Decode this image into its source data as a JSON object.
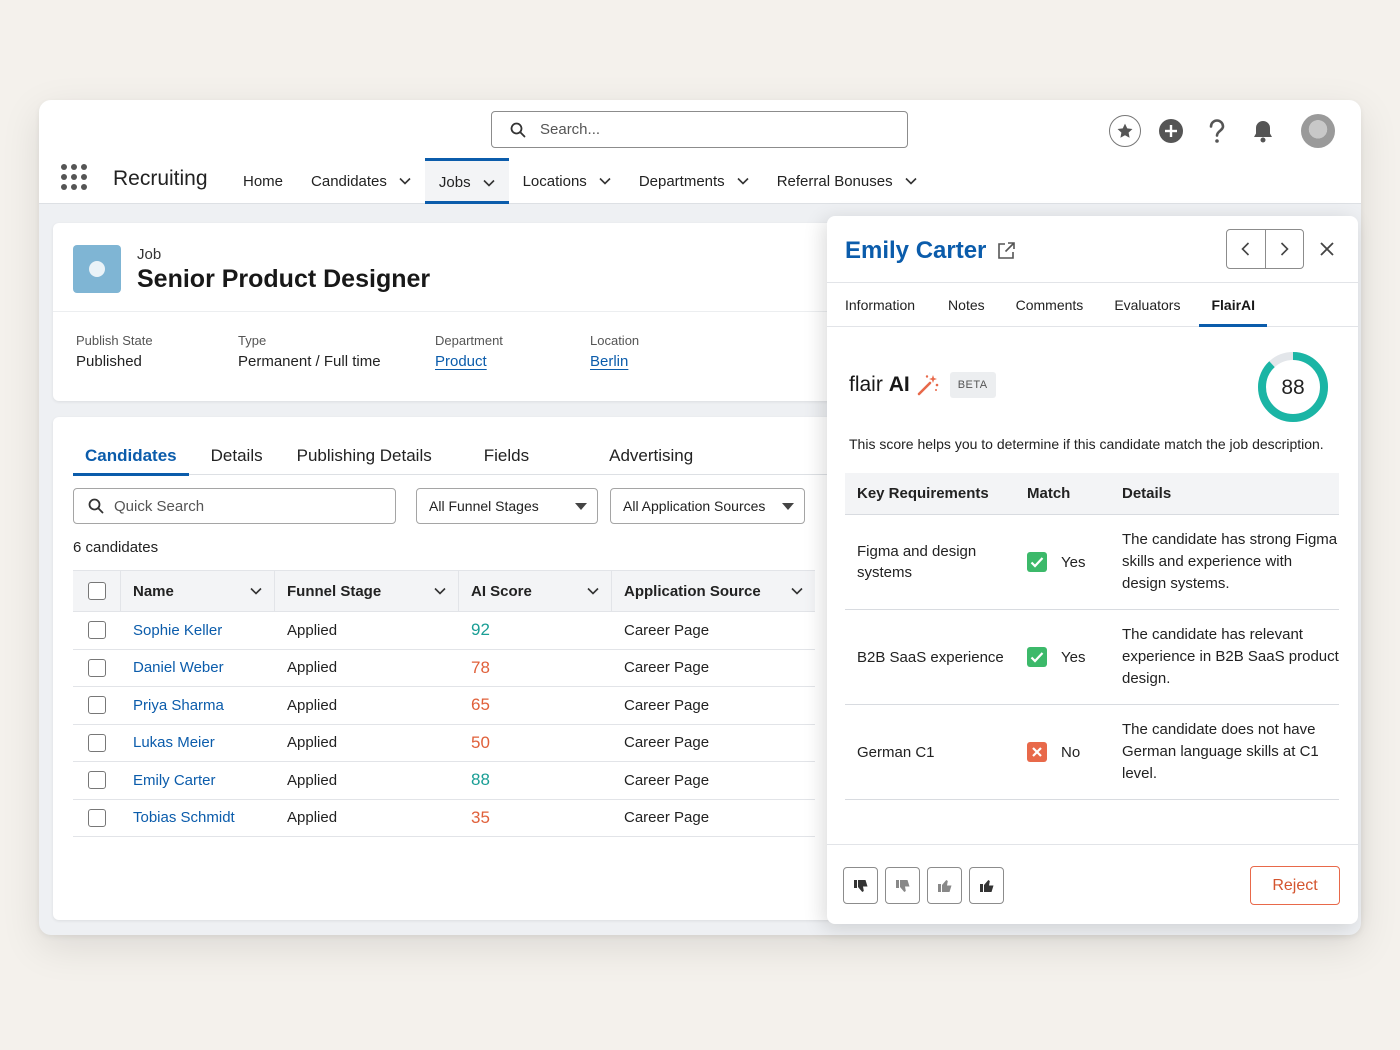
{
  "header": {
    "search_placeholder": "Search...",
    "app_name": "Recruiting",
    "nav": [
      {
        "label": "Home",
        "dropdown": false
      },
      {
        "label": "Candidates",
        "dropdown": true
      },
      {
        "label": "Jobs",
        "dropdown": true,
        "active": true
      },
      {
        "label": "Locations",
        "dropdown": true
      },
      {
        "label": "Departments",
        "dropdown": true
      },
      {
        "label": "Referral Bonuses",
        "dropdown": true
      }
    ],
    "icons": [
      "star-icon",
      "add-icon",
      "help-icon",
      "bell-icon",
      "avatar"
    ]
  },
  "job": {
    "label": "Job",
    "title": "Senior Product Designer",
    "fields": [
      {
        "label": "Publish State",
        "value": "Published",
        "link": false
      },
      {
        "label": "Type",
        "value": "Permanent / Full time",
        "link": false
      },
      {
        "label": "Department",
        "value": "Product",
        "link": true
      },
      {
        "label": "Location",
        "value": "Berlin",
        "link": true
      }
    ]
  },
  "candidates_section": {
    "tabs": [
      "Candidates",
      "Details",
      "Publishing Details",
      "Fields",
      "Advertising"
    ],
    "active_tab": "Candidates",
    "quick_search_placeholder": "Quick Search",
    "funnel_filter": "All Funnel Stages",
    "source_filter": "All Application Sources",
    "count_text": "6 candidates",
    "columns": [
      "Name",
      "Funnel Stage",
      "AI Score",
      "Application Source"
    ],
    "rows": [
      {
        "name": "Sophie Keller",
        "stage": "Applied",
        "score": "92",
        "score_color": "#1a9e95",
        "source": "Career Page"
      },
      {
        "name": "Daniel Weber",
        "stage": "Applied",
        "score": "78",
        "score_color": "#e0603a",
        "source": "Career Page"
      },
      {
        "name": "Priya Sharma",
        "stage": "Applied",
        "score": "65",
        "score_color": "#e0603a",
        "source": "Career Page"
      },
      {
        "name": "Lukas Meier",
        "stage": "Applied",
        "score": "50",
        "score_color": "#e0603a",
        "source": "Career Page"
      },
      {
        "name": "Emily Carter",
        "stage": "Applied",
        "score": "88",
        "score_color": "#1a9e95",
        "source": "Career Page"
      },
      {
        "name": "Tobias Schmidt",
        "stage": "Applied",
        "score": "35",
        "score_color": "#e0603a",
        "source": "Career Page"
      }
    ]
  },
  "panel": {
    "candidate_name": "Emily Carter",
    "tabs": [
      "Information",
      "Notes",
      "Comments",
      "Evaluators",
      "FlairAI"
    ],
    "active_tab": "FlairAI",
    "flair_title_prefix": "flair",
    "flair_title_suffix": "AI",
    "beta": "BETA",
    "score": "88",
    "score_fraction": 0.88,
    "score_color": "#1bb5a5",
    "description": "This score helps you to determine if this candidate match the job description.",
    "req_headers": {
      "requirement": "Key Requirements",
      "match": "Match",
      "details": "Details"
    },
    "requirements": [
      {
        "requirement": "Figma and design systems",
        "match": "Yes",
        "ok": true,
        "details": "The candidate has strong Figma skills and experience with design systems."
      },
      {
        "requirement": "B2B SaaS experience",
        "match": "Yes",
        "ok": true,
        "details": "The candidate has relevant experience in B2B SaaS product design."
      },
      {
        "requirement": "German C1",
        "match": "No",
        "ok": false,
        "details": "The candidate does not have German language skills at C1 level."
      }
    ],
    "feedback_icons": [
      "thumbs-down-strong-icon",
      "thumbs-down-icon",
      "thumbs-up-icon",
      "thumbs-up-strong-icon"
    ],
    "reject_label": "Reject"
  }
}
